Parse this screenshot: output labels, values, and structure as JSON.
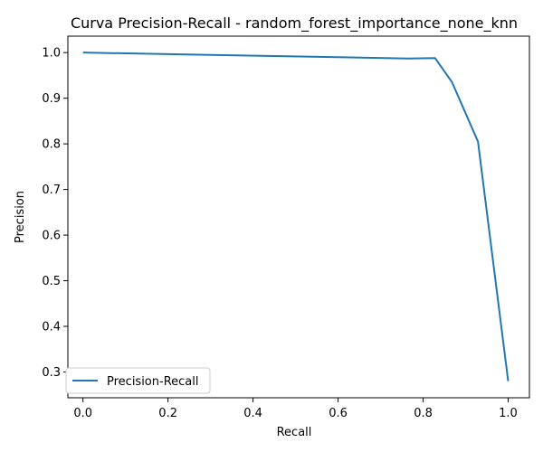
{
  "chart_data": {
    "type": "line",
    "title": "Curva Precision-Recall - random_forest_importance_none_knn",
    "xlabel": "Recall",
    "ylabel": "Precision",
    "xlim": [
      -0.0355,
      1.05
    ],
    "ylim": [
      0.2435,
      1.036
    ],
    "xticks": [
      0.0,
      0.2,
      0.4,
      0.6,
      0.8,
      1.0
    ],
    "xtick_labels": [
      "0.0",
      "0.2",
      "0.4",
      "0.6",
      "0.8",
      "1.0"
    ],
    "yticks": [
      0.3,
      0.4,
      0.5,
      0.6,
      0.7,
      0.8,
      0.9,
      1.0
    ],
    "ytick_labels": [
      "0.3",
      "0.4",
      "0.5",
      "0.6",
      "0.7",
      "0.8",
      "0.9",
      "1.0"
    ],
    "grid": false,
    "legend_position": "lower-left",
    "series": [
      {
        "name": "Precision-Recall",
        "color": "#1f77b4",
        "x": [
          0.0,
          0.3,
          0.6,
          0.765,
          0.828,
          0.868,
          0.929,
          1.0
        ],
        "y": [
          1.0,
          0.995,
          0.99,
          0.987,
          0.988,
          0.935,
          0.805,
          0.28
        ]
      }
    ]
  }
}
